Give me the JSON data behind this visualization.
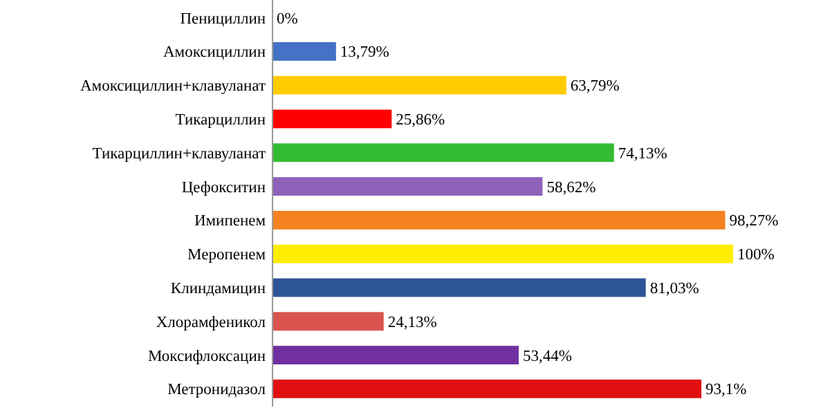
{
  "chart_data": {
    "type": "bar",
    "orientation": "horizontal",
    "categories": [
      "Пенициллин",
      "Амоксициллин",
      "Амоксициллин+клавуланат",
      "Тикарциллин",
      "Тикарциллин+клавуланат",
      "Цефокситин",
      "Имипенем",
      "Меропенем",
      "Клиндамицин",
      "Хлорамфеникол",
      "Моксифлоксацин",
      "Метронидазол"
    ],
    "values": [
      0,
      13.79,
      63.79,
      25.86,
      74.13,
      58.62,
      98.27,
      100,
      81.03,
      24.13,
      53.44,
      93.1
    ],
    "value_labels": [
      "0%",
      "13,79%",
      "63,79%",
      "25,86%",
      "74,13%",
      "58,62%",
      "98,27%",
      "100%",
      "81,03%",
      "24,13%",
      "53,44%",
      "93,1%"
    ],
    "colors": [
      "#4472c4",
      "#4472c4",
      "#ffcc00",
      "#ff0000",
      "#33bb33",
      "#8e62b8",
      "#f58220",
      "#ffee00",
      "#2e5597",
      "#d9534f",
      "#7030a0",
      "#e01010"
    ],
    "xlim": [
      0,
      100
    ]
  }
}
